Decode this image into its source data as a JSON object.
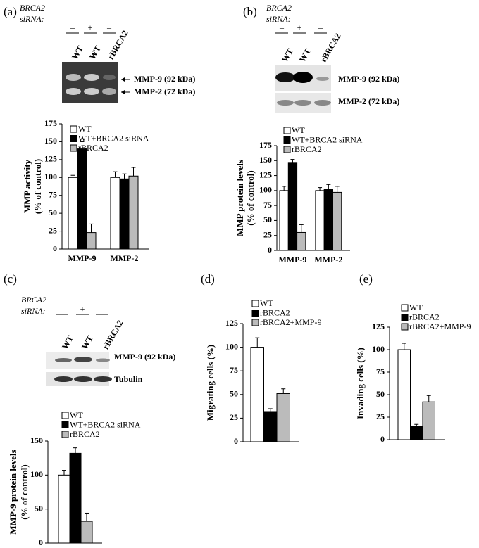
{
  "chart_data": [
    {
      "type": "bar",
      "panel_label": "(a)",
      "categories": [
        "MMP-9",
        "MMP-2"
      ],
      "ylabel": [
        "MMP activity",
        "(% of control)"
      ],
      "ylim": [
        0,
        175
      ],
      "yticks": [
        0,
        25,
        50,
        75,
        100,
        125,
        150,
        175
      ],
      "series": [
        {
          "name": "WT",
          "color": "#ffffff",
          "values": [
            100,
            100
          ],
          "errors": [
            3,
            8
          ]
        },
        {
          "name": "WT+BRCA2 siRNA",
          "color": "#000000",
          "values": [
            140,
            98
          ],
          "errors": [
            10,
            7
          ]
        },
        {
          "name": "rBRCA2",
          "color": "#bbbbbb",
          "values": [
            23,
            102
          ],
          "errors": [
            12,
            12
          ]
        }
      ]
    },
    {
      "type": "bar",
      "panel_label": "(b)",
      "categories": [
        "MMP-9",
        "MMP-2"
      ],
      "ylabel": [
        "MMP  protein levels",
        "(% of control)"
      ],
      "ylim": [
        0,
        175
      ],
      "yticks": [
        0,
        25,
        50,
        75,
        100,
        125,
        150,
        175
      ],
      "series": [
        {
          "name": "WT",
          "color": "#ffffff",
          "values": [
            100,
            100
          ],
          "errors": [
            7,
            5
          ]
        },
        {
          "name": "WT+BRCA2 siRNA",
          "color": "#000000",
          "values": [
            147,
            102
          ],
          "errors": [
            5,
            8
          ]
        },
        {
          "name": "rBRCA2",
          "color": "#bbbbbb",
          "values": [
            30,
            97
          ],
          "errors": [
            13,
            10
          ]
        }
      ]
    },
    {
      "type": "bar",
      "panel_label": "(c)",
      "categories": [
        null
      ],
      "ylabel": [
        "MMP-9 protein levels",
        "(% of control)"
      ],
      "ylim": [
        0,
        150
      ],
      "yticks": [
        0,
        50,
        100,
        150
      ],
      "series": [
        {
          "name": "WT",
          "color": "#ffffff",
          "values": [
            100
          ],
          "errors": [
            7
          ]
        },
        {
          "name": "WT+BRCA2 siRNA",
          "color": "#000000",
          "values": [
            132
          ],
          "errors": [
            8
          ]
        },
        {
          "name": "rBRCA2",
          "color": "#bbbbbb",
          "values": [
            32
          ],
          "errors": [
            12
          ]
        }
      ]
    },
    {
      "type": "bar",
      "panel_label": "(d)",
      "categories": [
        null
      ],
      "ylabel": [
        "Migrating cells (%)"
      ],
      "ylim": [
        0,
        125
      ],
      "yticks": [
        0,
        25,
        50,
        75,
        100,
        125
      ],
      "series": [
        {
          "name": "WT",
          "color": "#ffffff",
          "values": [
            100
          ],
          "errors": [
            10
          ]
        },
        {
          "name": "rBRCA2",
          "color": "#000000",
          "values": [
            32
          ],
          "errors": [
            3
          ]
        },
        {
          "name": "rBRCA2+MMP-9",
          "color": "#bbbbbb",
          "values": [
            51
          ],
          "errors": [
            5
          ]
        }
      ]
    },
    {
      "type": "bar",
      "panel_label": "(e)",
      "categories": [
        null
      ],
      "ylabel": [
        "Invading cells (%)"
      ],
      "ylim": [
        0,
        125
      ],
      "yticks": [
        0,
        25,
        50,
        75,
        100,
        125
      ],
      "series": [
        {
          "name": "WT",
          "color": "#ffffff",
          "values": [
            100
          ],
          "errors": [
            7
          ]
        },
        {
          "name": "rBRCA2",
          "color": "#000000",
          "values": [
            15
          ],
          "errors": [
            2
          ]
        },
        {
          "name": "rBRCA2+MMP-9",
          "color": "#bbbbbb",
          "values": [
            42
          ],
          "errors": [
            7
          ]
        }
      ]
    }
  ],
  "blots": [
    {
      "gene": "BRCA2",
      "sirna": "siRNA:",
      "signs": [
        "–",
        "+",
        "–"
      ],
      "lanes": [
        "WT",
        "WT",
        "rBRCA2"
      ],
      "bands": [
        "MMP-9 (92 kDa)",
        "MMP-2 (72 kDa)"
      ]
    },
    {
      "gene": "BRCA2",
      "sirna": "siRNA:",
      "signs": [
        "–",
        "+",
        "–"
      ],
      "lanes": [
        "WT",
        "WT",
        "rBRCA2"
      ],
      "bands": [
        "MMP-9 (92 kDa)",
        "MMP-2 (72 kDa)"
      ]
    },
    {
      "gene": "BRCA2",
      "sirna": "siRNA:",
      "signs": [
        "–",
        "+",
        "–"
      ],
      "lanes": [
        "WT",
        "WT",
        "rBRCA2"
      ],
      "bands": [
        "MMP-9  (92 kDa)",
        "Tubulin"
      ]
    }
  ]
}
